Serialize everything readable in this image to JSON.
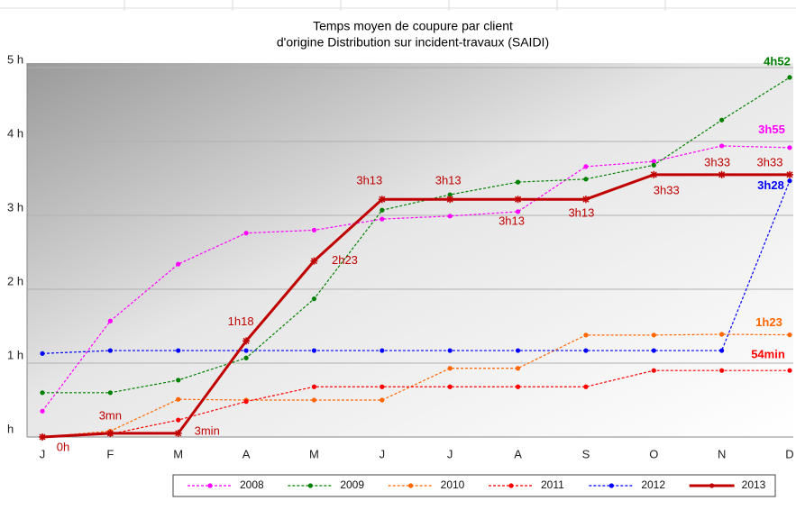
{
  "chart_data": {
    "type": "line",
    "title": [
      "Temps moyen de coupure par client",
      "d'origine Distribution  sur incident-travaux (SAIDI)"
    ],
    "categories": [
      "J",
      "F",
      "M",
      "A",
      "M",
      "J",
      "J",
      "A",
      "S",
      "O",
      "N",
      "D"
    ],
    "ylim": [
      0,
      5
    ],
    "yticks": [
      {
        "value": 0,
        "label": "h"
      },
      {
        "value": 1,
        "label": "1 h"
      },
      {
        "value": 2,
        "label": "2 h"
      },
      {
        "value": 3,
        "label": "3 h"
      },
      {
        "value": 4,
        "label": "4 h"
      },
      {
        "value": 5,
        "label": "5 h"
      }
    ],
    "grid": true,
    "legend": "bottom",
    "series": [
      {
        "name": "2008",
        "color": "#ff00ff",
        "line_style": "dashed",
        "values": [
          0.35,
          1.57,
          2.34,
          2.76,
          2.8,
          2.95,
          2.99,
          3.05,
          3.66,
          3.73,
          3.94,
          3.917
        ],
        "value_labels": [
          null,
          null,
          null,
          null,
          null,
          null,
          null,
          null,
          null,
          null,
          null,
          "3h55"
        ]
      },
      {
        "name": "2009",
        "color": "#008000",
        "line_style": "dashed",
        "values": [
          0.6,
          0.6,
          0.77,
          1.07,
          1.87,
          3.07,
          3.28,
          3.45,
          3.49,
          3.68,
          4.29,
          4.867
        ],
        "value_labels": [
          null,
          null,
          null,
          null,
          null,
          null,
          null,
          null,
          null,
          null,
          null,
          "4h52"
        ]
      },
      {
        "name": "2010",
        "color": "#ff6600",
        "line_style": "dashed",
        "values": [
          0,
          0.08,
          0.51,
          0.5,
          0.5,
          0.5,
          0.93,
          0.93,
          1.38,
          1.38,
          1.39,
          1.383
        ],
        "value_labels": [
          null,
          null,
          null,
          null,
          null,
          null,
          null,
          null,
          null,
          null,
          null,
          "1h23"
        ]
      },
      {
        "name": "2011",
        "color": "#ff0000",
        "line_style": "dashed",
        "values": [
          0,
          0.04,
          0.23,
          0.48,
          0.68,
          0.68,
          0.68,
          0.68,
          0.68,
          0.9,
          0.9,
          0.9
        ],
        "value_labels": [
          null,
          null,
          null,
          null,
          null,
          null,
          null,
          null,
          null,
          null,
          null,
          "54min"
        ]
      },
      {
        "name": "2012",
        "color": "#0000ff",
        "line_style": "dashed",
        "values": [
          1.13,
          1.17,
          1.17,
          1.17,
          1.17,
          1.17,
          1.17,
          1.17,
          1.17,
          1.17,
          1.17,
          3.467
        ],
        "value_labels": [
          null,
          null,
          null,
          null,
          null,
          null,
          null,
          null,
          null,
          null,
          null,
          "3h28"
        ]
      },
      {
        "name": "2013",
        "color": "#c00000",
        "line_style": "solid",
        "values": [
          0,
          0.05,
          0.05,
          1.3,
          2.383,
          3.217,
          3.217,
          3.217,
          3.217,
          3.55,
          3.55,
          3.55
        ],
        "value_labels": [
          "0h",
          "3mn",
          "3min",
          "1h18",
          "2h23",
          "3h13",
          "3h13",
          "3h13",
          "3h13",
          "3h33",
          "3h33",
          "3h33"
        ]
      }
    ]
  }
}
